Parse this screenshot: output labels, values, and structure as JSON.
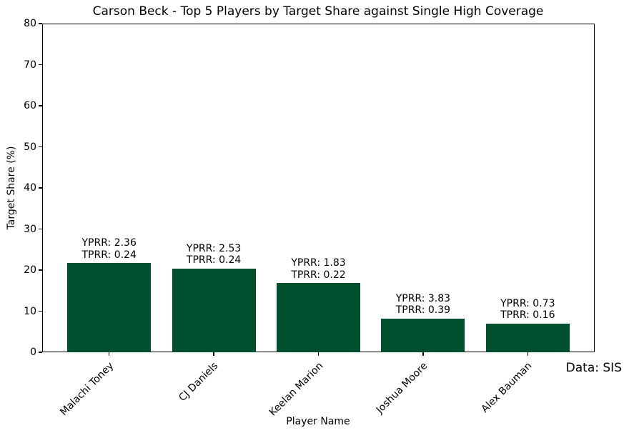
{
  "chart_data": {
    "type": "bar",
    "title": "Carson Beck - Top 5 Players by Target Share against Single High Coverage",
    "xlabel": "Player Name",
    "ylabel": "Target Share (%)",
    "source_note": "Data: SIS",
    "categories": [
      "Malachi Toney",
      "CJ Daniels",
      "Keelan Marion",
      "Joshua Moore",
      "Alex Bauman"
    ],
    "values": [
      21.7,
      20.4,
      16.8,
      8.2,
      7.0
    ],
    "annotations": [
      {
        "line1": "YPRR: 2.36",
        "line2": "TPRR: 0.24"
      },
      {
        "line1": "YPRR: 2.53",
        "line2": "TPRR: 0.24"
      },
      {
        "line1": "YPRR: 1.83",
        "line2": "TPRR: 0.22"
      },
      {
        "line1": "YPRR: 3.83",
        "line2": "TPRR: 0.39"
      },
      {
        "line1": "YPRR: 0.73",
        "line2": "TPRR: 0.16"
      }
    ],
    "ylim": [
      0,
      80
    ],
    "yticks": [
      0,
      10,
      20,
      30,
      40,
      50,
      60,
      70,
      80
    ],
    "bar_color": "#005030",
    "axis_color": "#000000",
    "grid": false,
    "legend": "none"
  }
}
